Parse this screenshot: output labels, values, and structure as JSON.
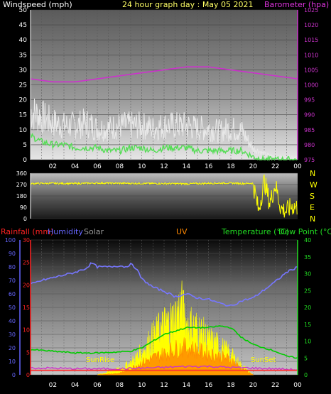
{
  "header": {
    "left_label": "Windspeed (mph)",
    "title": "24 hour graph day : May 05 2021",
    "right_label": "Barometer (hpa)"
  },
  "colors": {
    "wind": "#e8e8e8",
    "gust": "#d0d0d0",
    "wind_avg": "#55dd55",
    "barometer": "#cc33cc",
    "direction": "#ffff00",
    "humidity": "#7777ff",
    "temperature": "#00cc00",
    "dewpoint": "#33cc33",
    "solar": "#ffff00",
    "uv": "#ff8800",
    "rain": "#ff3333",
    "rain_axis": "#ff2222",
    "humidity_axis": "#6666ff",
    "temp_axis": "#22dd22"
  },
  "lower_header": {
    "rainfall": "Rainfall (mm)",
    "humidity": "Humidity",
    "solar": "Solar",
    "uv": "UV",
    "temperature": "Temperature (°C)",
    "dewpoint": "Dew Point (°C)"
  },
  "compass": [
    "N",
    "W",
    "S",
    "E",
    "N"
  ],
  "annotations": {
    "sunrise": "SunRise",
    "sunset": "SunSet"
  },
  "chart_data": [
    {
      "type": "line",
      "panel": "wind_barometer",
      "x_ticks": [
        "02",
        "04",
        "06",
        "08",
        "10",
        "12",
        "14",
        "16",
        "18",
        "20",
        "22",
        "00"
      ],
      "ylim_left": [
        0,
        50
      ],
      "yticks_left": [
        0,
        5,
        10,
        15,
        20,
        25,
        30,
        35,
        40,
        45,
        50
      ],
      "ylim_right": [
        975,
        1025
      ],
      "yticks_right": [
        975,
        980,
        985,
        990,
        995,
        1000,
        1005,
        1010,
        1015,
        1020,
        1025
      ],
      "series": [
        {
          "name": "Windspeed",
          "x": [
            0,
            1,
            2,
            3,
            4,
            5,
            6,
            7,
            8,
            9,
            10,
            11,
            12,
            13,
            14,
            15,
            16,
            17,
            18,
            19,
            20,
            21,
            22,
            23,
            24
          ],
          "values": [
            17,
            15,
            13,
            12,
            12,
            13,
            11,
            11,
            12,
            12,
            12,
            11,
            12,
            12,
            12,
            11,
            11,
            10,
            11,
            10,
            4,
            2,
            1,
            1,
            1
          ]
        },
        {
          "name": "Wind average",
          "x": [
            0,
            1,
            2,
            3,
            4,
            5,
            6,
            7,
            8,
            9,
            10,
            11,
            12,
            13,
            14,
            15,
            16,
            17,
            18,
            19,
            20,
            21,
            22,
            23,
            24
          ],
          "values": [
            8,
            6,
            5,
            5,
            4,
            4,
            4,
            3,
            3,
            4,
            4,
            3,
            4,
            4,
            4,
            3,
            3,
            3,
            3,
            3,
            1,
            0,
            0,
            0,
            0
          ]
        },
        {
          "name": "Barometer",
          "x": [
            0,
            2,
            4,
            6,
            8,
            10,
            12,
            14,
            15,
            16,
            18,
            20,
            22,
            24
          ],
          "values": [
            1002,
            1001,
            1001,
            1002,
            1003,
            1004,
            1005,
            1006,
            1006,
            1006,
            1005,
            1004,
            1003,
            1002
          ]
        }
      ]
    },
    {
      "type": "line",
      "panel": "wind_direction",
      "ylim": [
        0,
        360
      ],
      "yticks": [
        0,
        90,
        180,
        270,
        360
      ],
      "series": [
        {
          "name": "Wind direction",
          "x": [
            0,
            2,
            4,
            6,
            8,
            10,
            12,
            14,
            16,
            18,
            19,
            20,
            20.5,
            21,
            21.5,
            22,
            22.5,
            23,
            23.5,
            24
          ],
          "values": [
            278,
            280,
            278,
            282,
            280,
            279,
            278,
            276,
            280,
            282,
            278,
            280,
            60,
            300,
            120,
            270,
            80,
            60,
            100,
            90
          ]
        }
      ]
    },
    {
      "type": "line",
      "panel": "temperature_humidity_solar",
      "x_ticks": [
        "02",
        "04",
        "06",
        "08",
        "10",
        "12",
        "14",
        "16",
        "18",
        "20",
        "22",
        "00"
      ],
      "rain_ylim": [
        0,
        30
      ],
      "rain_yticks": [
        0,
        5,
        10,
        15,
        20,
        25,
        30
      ],
      "humidity_ylim": [
        0,
        100
      ],
      "humidity_yticks": [
        0,
        10,
        20,
        30,
        40,
        50,
        60,
        70,
        80,
        90,
        100
      ],
      "temp_ylim": [
        0,
        40
      ],
      "temp_yticks": [
        0,
        5,
        10,
        15,
        20,
        25,
        30,
        35,
        40
      ],
      "series": [
        {
          "name": "Humidity",
          "axis": "humidity",
          "x": [
            0,
            1,
            2,
            3,
            4,
            5,
            5.5,
            6,
            7,
            8,
            8.5,
            9,
            9.5,
            10,
            11,
            12,
            13,
            14,
            15,
            16,
            17,
            17.5,
            18,
            19,
            20,
            21,
            22,
            23,
            24
          ],
          "values": [
            67,
            70,
            72,
            74,
            76,
            79,
            83,
            80,
            80,
            81,
            80,
            82,
            79,
            71,
            65,
            62,
            58,
            60,
            57,
            56,
            53,
            52,
            51,
            55,
            57,
            63,
            69,
            76,
            80
          ]
        },
        {
          "name": "Temperature",
          "axis": "temp",
          "x": [
            0,
            2,
            4,
            6,
            8,
            9,
            10,
            11,
            12,
            13,
            14,
            15,
            16,
            17,
            18,
            19,
            20,
            21,
            22,
            23,
            24
          ],
          "values": [
            7.5,
            7,
            6.5,
            6.5,
            6.8,
            7,
            8,
            10,
            12,
            13,
            14,
            14,
            14,
            14.5,
            14,
            11,
            9,
            8,
            7,
            5.5,
            5
          ]
        },
        {
          "name": "Dew Point",
          "axis": "temp",
          "x": [
            0,
            2,
            4,
            6,
            8,
            10,
            12,
            14,
            16,
            18,
            20,
            22,
            24
          ],
          "values": [
            2,
            2,
            1.8,
            1.8,
            1.8,
            2,
            2.2,
            2.5,
            2.5,
            2.2,
            2,
            1.8,
            1.5
          ]
        },
        {
          "name": "Solar",
          "axis": "temp",
          "x": [
            6,
            7,
            8,
            9,
            10,
            11,
            12,
            13,
            13.5,
            14,
            15,
            16,
            17,
            18,
            19,
            20
          ],
          "values": [
            0,
            1,
            2,
            4,
            8,
            13,
            17,
            20,
            24,
            18,
            16,
            12,
            10,
            7,
            3,
            0
          ]
        },
        {
          "name": "UV",
          "axis": "temp",
          "x": [
            6,
            8,
            9,
            10,
            11,
            12,
            13,
            14,
            15,
            16,
            17,
            18,
            19,
            20
          ],
          "values": [
            0,
            0.5,
            2,
            4,
            5.5,
            7,
            8.5,
            9,
            8,
            7,
            6,
            5,
            2,
            0
          ]
        },
        {
          "name": "Rainfall",
          "axis": "rain",
          "x": [
            0,
            2,
            4,
            6,
            8,
            9,
            9.1,
            12,
            15,
            20,
            22,
            24
          ],
          "values": [
            1,
            1,
            1,
            1,
            1,
            1,
            1,
            1,
            1,
            1,
            1,
            1
          ]
        }
      ]
    }
  ]
}
